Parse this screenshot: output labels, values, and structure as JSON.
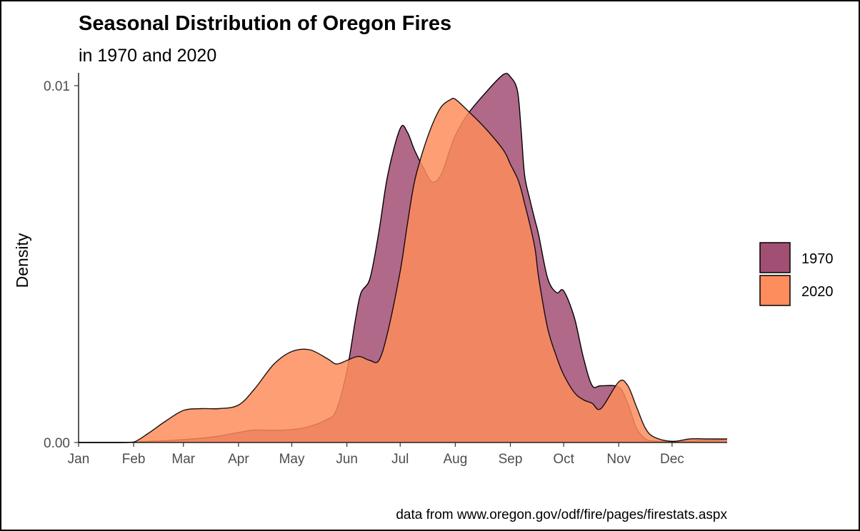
{
  "chart_data": {
    "type": "area",
    "title": "Seasonal Distribution of Oregon Fires",
    "subtitle": "in 1970 and 2020",
    "xlabel": "",
    "ylabel": "Density",
    "caption": "data from www.oregon.gov/odf/fire/pages/firestats.aspx",
    "x_ticks": [
      {
        "label": "Jan",
        "day": 1
      },
      {
        "label": "Feb",
        "day": 32
      },
      {
        "label": "Mar",
        "day": 60
      },
      {
        "label": "Apr",
        "day": 91
      },
      {
        "label": "May",
        "day": 121
      },
      {
        "label": "Jun",
        "day": 152
      },
      {
        "label": "Jul",
        "day": 182
      },
      {
        "label": "Aug",
        "day": 213
      },
      {
        "label": "Sep",
        "day": 244
      },
      {
        "label": "Oct",
        "day": 274
      },
      {
        "label": "Nov",
        "day": 305
      },
      {
        "label": "Dec",
        "day": 335
      }
    ],
    "xlim": [
      1,
      366
    ],
    "y_ticks": [
      {
        "label": "0.00",
        "value": 0
      },
      {
        "label": "0.01",
        "value": 0.01
      }
    ],
    "ylim": [
      0,
      0.01
    ],
    "grid": false,
    "legend_position": "right",
    "series": [
      {
        "name": "1970",
        "color": "#a24f74",
        "x": [
          1,
          25,
          32,
          40,
          50,
          60,
          70,
          80,
          91,
          100,
          111,
          121,
          131,
          141,
          146,
          152,
          157,
          160,
          165,
          170,
          175,
          182,
          186,
          190,
          195,
          200,
          205,
          210,
          213,
          220,
          230,
          240,
          244,
          248,
          250,
          252,
          255,
          258,
          260,
          265,
          270,
          274,
          280,
          285,
          290,
          295,
          305,
          310,
          315,
          320,
          325,
          335,
          345,
          355,
          366
        ],
        "y": [
          0,
          0,
          1e-05,
          3e-05,
          5e-05,
          8e-05,
          0.00012,
          0.00018,
          0.00028,
          0.00035,
          0.00034,
          0.00036,
          0.00045,
          0.00065,
          0.0009,
          0.002,
          0.0035,
          0.0042,
          0.0046,
          0.0059,
          0.0075,
          0.0088,
          0.0087,
          0.0082,
          0.0077,
          0.0073,
          0.0075,
          0.0082,
          0.0086,
          0.0092,
          0.0098,
          0.01031,
          0.01025,
          0.00985,
          0.0088,
          0.0075,
          0.0068,
          0.0062,
          0.0058,
          0.0046,
          0.0042,
          0.00425,
          0.0035,
          0.0024,
          0.0016,
          0.00159,
          0.00155,
          0.0011,
          0.0004,
          0.0001,
          4e-05,
          3e-05,
          4e-05,
          6e-05,
          8e-05
        ]
      },
      {
        "name": "2020",
        "color": "#fd8d5c",
        "x": [
          1,
          25,
          32,
          40,
          50,
          60,
          70,
          80,
          91,
          100,
          111,
          121,
          131,
          141,
          146,
          152,
          157,
          160,
          165,
          170,
          175,
          182,
          186,
          190,
          195,
          200,
          205,
          210,
          213,
          220,
          230,
          240,
          244,
          248,
          250,
          252,
          255,
          258,
          260,
          265,
          270,
          274,
          280,
          285,
          290,
          295,
          305,
          310,
          315,
          320,
          325,
          335,
          345,
          355,
          366
        ],
        "y": [
          0,
          0,
          1e-05,
          0.00025,
          0.0006,
          0.0009,
          0.00095,
          0.00095,
          0.00105,
          0.0015,
          0.0022,
          0.00255,
          0.0026,
          0.00235,
          0.0022,
          0.0023,
          0.0024,
          0.0024,
          0.0023,
          0.0023,
          0.0031,
          0.0048,
          0.0061,
          0.0073,
          0.0082,
          0.0089,
          0.0094,
          0.0096,
          0.00962,
          0.0093,
          0.0088,
          0.0082,
          0.0078,
          0.0074,
          0.0071,
          0.0067,
          0.0061,
          0.0054,
          0.0046,
          0.0032,
          0.0024,
          0.0019,
          0.0014,
          0.0012,
          0.0011,
          0.00095,
          0.0017,
          0.0016,
          0.001,
          0.0004,
          0.00015,
          3e-05,
          0.0001,
          0.0001,
          0.0001
        ]
      }
    ],
    "fill_alpha": 0.85,
    "outline_color": "#000000"
  }
}
